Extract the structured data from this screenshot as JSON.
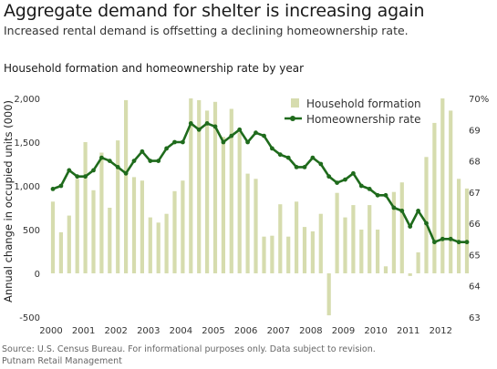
{
  "header": {
    "title": "Aggregate demand for shelter is increasing again",
    "subtitle": "Increased rental demand is offsetting a declining homeownership rate."
  },
  "footer": {
    "source": "Source: U.S. Census Bureau. For informational purposes only. Data subject to revision.",
    "org": "Putnam Retail Management"
  },
  "colors": {
    "bar": "#d6dcae",
    "line": "#1f6b1c",
    "text": "#333333"
  },
  "chart_data": {
    "type": "bar+line",
    "title": "Household formation and homeownership rate by year",
    "ylabel": "Annual change in occupied units (000)",
    "xlabel": "",
    "x_ticks": [
      "2000",
      "2001",
      "2002",
      "2003",
      "2004",
      "2005",
      "2006",
      "2007",
      "2008",
      "2009",
      "2010",
      "2011",
      "2012"
    ],
    "x_range": [
      2000,
      2012.75
    ],
    "y_left": {
      "range": [
        -500,
        2000
      ],
      "ticks": [
        -500,
        0,
        500,
        1000,
        1500,
        2000
      ],
      "tick_labels": [
        "-500",
        "0",
        "500",
        "1,000",
        "1,500",
        "2,000"
      ]
    },
    "y_right": {
      "range": [
        63,
        70
      ],
      "ticks": [
        63,
        64,
        65,
        66,
        67,
        68,
        69,
        70
      ],
      "tick_labels": [
        "63",
        "64",
        "65",
        "66",
        "67",
        "68",
        "69",
        "70%"
      ]
    },
    "grid": false,
    "legend": {
      "position": "top-right",
      "entries": [
        "Household formation",
        "Homeownership rate"
      ]
    },
    "series": [
      {
        "name": "Household formation",
        "type": "bar",
        "axis": "left",
        "x": [
          2000.0,
          2000.25,
          2000.5,
          2000.75,
          2001.0,
          2001.25,
          2001.5,
          2001.75,
          2002.0,
          2002.25,
          2002.5,
          2002.75,
          2003.0,
          2003.25,
          2003.5,
          2003.75,
          2004.0,
          2004.25,
          2004.5,
          2004.75,
          2005.0,
          2005.25,
          2005.5,
          2005.75,
          2006.0,
          2006.25,
          2006.5,
          2006.75,
          2007.0,
          2007.25,
          2007.5,
          2007.75,
          2008.0,
          2008.25,
          2008.5,
          2008.75,
          2009.0,
          2009.25,
          2009.5,
          2009.75,
          2010.0,
          2010.25,
          2010.5,
          2010.75,
          2011.0,
          2011.25,
          2011.5,
          2011.75,
          2012.0,
          2012.25,
          2012.5,
          2012.75
        ],
        "values": [
          820,
          470,
          660,
          1080,
          1500,
          950,
          1380,
          750,
          1520,
          1980,
          1100,
          1060,
          640,
          580,
          680,
          940,
          1060,
          2000,
          1980,
          1860,
          1960,
          1560,
          1880,
          1610,
          1140,
          1080,
          420,
          430,
          790,
          420,
          820,
          530,
          480,
          680,
          -480,
          920,
          640,
          780,
          500,
          780,
          500,
          80,
          930,
          1040,
          -30,
          240,
          1330,
          1720,
          2000,
          1860,
          1080,
          970
        ]
      },
      {
        "name": "Homeownership rate",
        "type": "line",
        "axis": "right",
        "markers": true,
        "x": [
          2000.0,
          2000.25,
          2000.5,
          2000.75,
          2001.0,
          2001.25,
          2001.5,
          2001.75,
          2002.0,
          2002.25,
          2002.5,
          2002.75,
          2003.0,
          2003.25,
          2003.5,
          2003.75,
          2004.0,
          2004.25,
          2004.5,
          2004.75,
          2005.0,
          2005.25,
          2005.5,
          2005.75,
          2006.0,
          2006.25,
          2006.5,
          2006.75,
          2007.0,
          2007.25,
          2007.5,
          2007.75,
          2008.0,
          2008.25,
          2008.5,
          2008.75,
          2009.0,
          2009.25,
          2009.5,
          2009.75,
          2010.0,
          2010.25,
          2010.5,
          2010.75,
          2011.0,
          2011.25,
          2011.5,
          2011.75,
          2012.0,
          2012.25,
          2012.5,
          2012.75
        ],
        "values": [
          67.1,
          67.2,
          67.7,
          67.5,
          67.5,
          67.7,
          68.1,
          68.0,
          67.8,
          67.6,
          68.0,
          68.3,
          68.0,
          68.0,
          68.4,
          68.6,
          68.6,
          69.2,
          69.0,
          69.2,
          69.1,
          68.6,
          68.8,
          69.0,
          68.6,
          68.9,
          68.8,
          68.4,
          68.2,
          68.1,
          67.8,
          67.8,
          68.1,
          67.9,
          67.5,
          67.3,
          67.4,
          67.6,
          67.2,
          67.1,
          66.9,
          66.9,
          66.5,
          66.4,
          65.9,
          66.4,
          66.0,
          65.4,
          65.5,
          65.5,
          65.4,
          65.4
        ]
      }
    ]
  }
}
